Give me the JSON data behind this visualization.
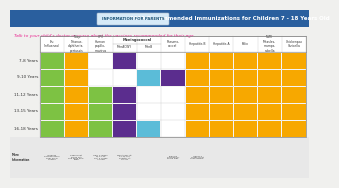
{
  "title": "2019 Recommended Immunizations for Children 7 - 18 Years Old",
  "subtitle": "Talk to your child's doctor or nurse about the vaccines recommended for their age.",
  "info_label": "INFORMATION FOR PARENTS",
  "bg_color": "#f0f0ee",
  "header_bg": "#2a5f9e",
  "header_text_color": "#ffffff",
  "subtitle_color": "#e91e8c",
  "age_rows": [
    "7-8 Years",
    "9-10 Years",
    "11-12 Years",
    "13-15 Years",
    "16-18 Years"
  ],
  "columns": [
    "flu",
    "tdap",
    "hpv",
    "menACWY",
    "menB",
    "pneumo",
    "hepB",
    "hepA",
    "polio",
    "mmr",
    "varicella"
  ],
  "grid": {
    "flu": [
      1,
      1,
      1,
      1,
      1
    ],
    "tdap": [
      1,
      1,
      1,
      1,
      1
    ],
    "hpv": [
      0,
      0,
      1,
      1,
      1
    ],
    "menACWY": [
      1,
      0,
      1,
      1,
      1
    ],
    "menB": [
      0,
      1,
      0,
      0,
      1
    ],
    "pneumo": [
      0,
      1,
      0,
      0,
      0
    ],
    "hepB": [
      1,
      1,
      1,
      1,
      1
    ],
    "hepA": [
      1,
      1,
      1,
      1,
      1
    ],
    "polio": [
      1,
      1,
      1,
      1,
      1
    ],
    "mmr": [
      1,
      1,
      1,
      1,
      1
    ],
    "varicella": [
      1,
      1,
      1,
      1,
      1
    ]
  },
  "colors": {
    "flu": "#7dc243",
    "tdap": "#f7a800",
    "hpv": "#7dc243",
    "menACWY": "#5b2d8e",
    "menB": "#5bbcd8",
    "pneumo": "#5b2d8e",
    "hepB": "#f7a800",
    "hepA": "#f7a800",
    "polio": "#f7a800",
    "mmr": "#f7a800",
    "varicella": "#f7a800"
  },
  "simple_headers": [
    [
      "Flu\n(influenza)",
      0
    ],
    [
      "Tdap\nTetanus,\ndiphtheria,\npertussis",
      1
    ],
    [
      "HPV\nHuman\npapillo-\nmavirus",
      2
    ],
    [
      "Pneumo-\ncoccal",
      5
    ],
    [
      "Hepatitis B",
      6
    ],
    [
      "Hepatitis A",
      7
    ],
    [
      "Polio",
      8
    ],
    [
      "MMR\nMeasles,\nmumps,\nrubella",
      9
    ],
    [
      "Chickenpox\nVaricella",
      10
    ]
  ]
}
